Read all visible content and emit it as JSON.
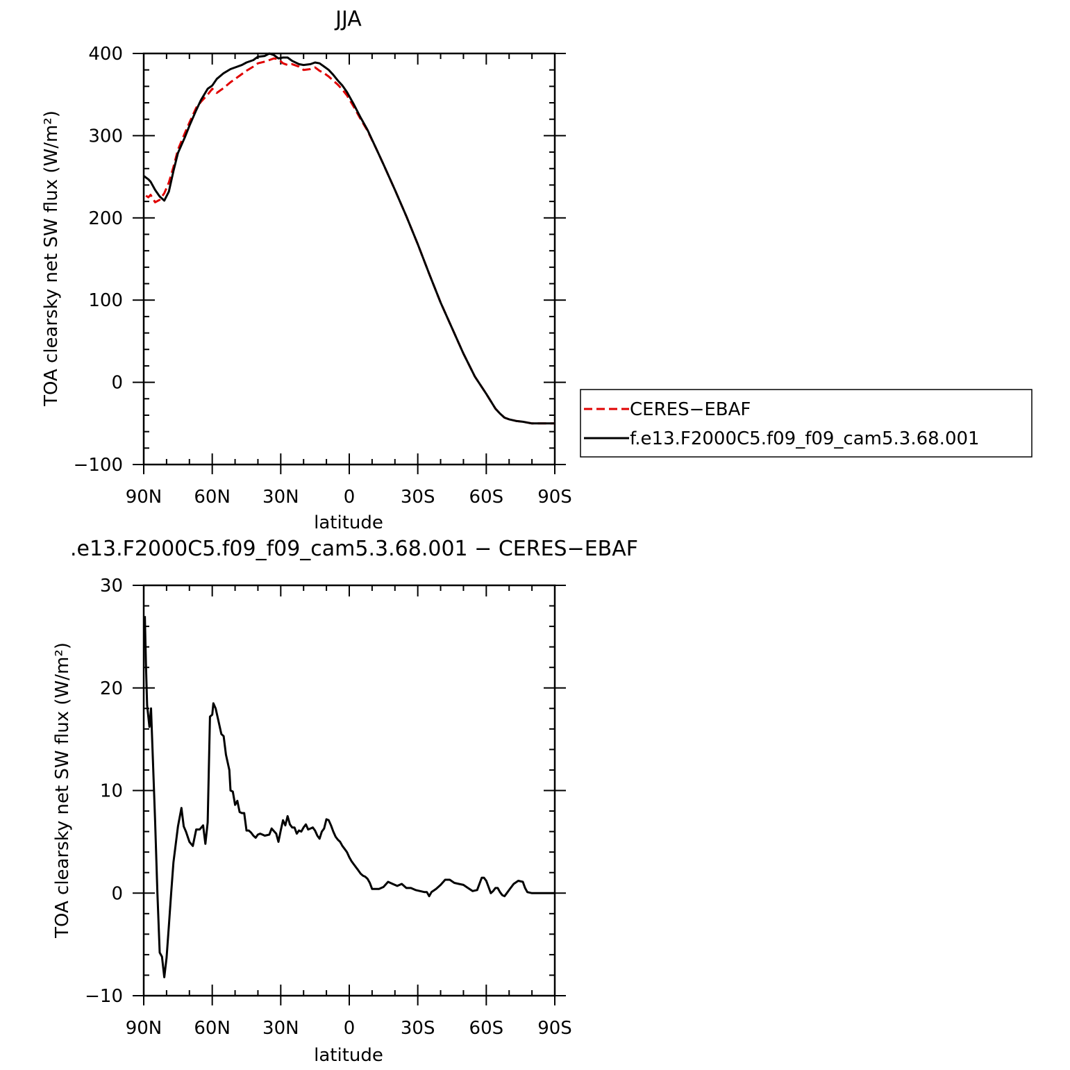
{
  "chart_data": [
    {
      "type": "line",
      "title": "JJA",
      "xlabel": "latitude",
      "ylabel": "TOA clearsky net SW flux (W/m²)",
      "xlim": [
        90,
        -90
      ],
      "ylim": [
        -100,
        400
      ],
      "xticks": [
        90,
        60,
        30,
        0,
        -30,
        -60,
        -90
      ],
      "xtick_labels": [
        "90N",
        "60N",
        "30N",
        "0",
        "30S",
        "60S",
        "90S"
      ],
      "yticks": [
        400,
        300,
        200,
        100,
        0,
        -100
      ],
      "ytick_labels": [
        "400",
        "300",
        "200",
        "100",
        "0",
        "−100"
      ],
      "legend": "right",
      "series": [
        {
          "name": "CERES−EBAF",
          "color": "#e00000",
          "style": "dashed",
          "x": [
            89,
            88,
            87,
            85,
            83,
            81,
            79,
            77,
            75,
            72,
            70,
            67,
            65,
            62,
            60,
            58,
            55,
            52,
            50,
            47,
            45,
            42,
            40,
            37,
            35,
            33,
            31,
            29,
            27,
            25,
            22,
            20,
            17,
            15,
            13,
            11,
            9,
            7,
            5,
            3,
            1,
            -2,
            -5,
            -8,
            -12,
            -15,
            -20,
            -25,
            -30,
            -35,
            -40,
            -45,
            -50,
            -55,
            -60,
            -62,
            -64,
            -66,
            -68,
            -70,
            -73,
            -76,
            -80,
            -84,
            -88,
            -90
          ],
          "y": [
            227,
            225,
            228,
            219,
            222,
            230,
            243,
            262,
            283,
            303,
            316,
            334,
            341,
            350,
            357,
            352,
            358,
            365,
            369,
            375,
            379,
            384,
            388,
            390,
            392,
            394,
            393,
            388,
            386,
            387,
            384,
            380,
            381,
            383,
            379,
            376,
            372,
            367,
            362,
            356,
            349,
            335,
            320,
            306,
            283,
            265,
            234,
            202,
            168,
            132,
            97,
            66,
            35,
            7,
            -14,
            -23,
            -32,
            -38,
            -43,
            -45,
            -47,
            -48,
            -50,
            -50,
            -50,
            -50
          ]
        },
        {
          "name": "f.e13.F2000C5.f09_f09_cam5.3.68.001",
          "color": "#000000",
          "style": "solid",
          "x": [
            90,
            88,
            87,
            85,
            83,
            81,
            79,
            77,
            75,
            72,
            70,
            67,
            65,
            62,
            60,
            58,
            55,
            52,
            50,
            47,
            45,
            42,
            40,
            37,
            35,
            33,
            31,
            29,
            27,
            25,
            22,
            20,
            17,
            15,
            13,
            11,
            9,
            7,
            5,
            3,
            1,
            -2,
            -5,
            -8,
            -12,
            -15,
            -20,
            -25,
            -30,
            -35,
            -40,
            -45,
            -50,
            -55,
            -60,
            -62,
            -64,
            -66,
            -68,
            -70,
            -73,
            -76,
            -80,
            -84,
            -88,
            -90
          ],
          "y": [
            251,
            247,
            244,
            234,
            226,
            221,
            232,
            257,
            279,
            298,
            312,
            331,
            343,
            357,
            361,
            369,
            376,
            381,
            383,
            386,
            389,
            392,
            396,
            397,
            400,
            398,
            394,
            395,
            395,
            391,
            387,
            386,
            387,
            389,
            388,
            384,
            380,
            374,
            367,
            361,
            353,
            338,
            322,
            307,
            283,
            265,
            234,
            202,
            168,
            132,
            97,
            66,
            35,
            7,
            -14,
            -23,
            -32,
            -38,
            -43,
            -45,
            -47,
            -48,
            -50,
            -50,
            -50,
            -50
          ]
        }
      ]
    },
    {
      "type": "line",
      "title": ".e13.F2000C5.f09_f09_cam5.3.68.001 − CERES−EBAF",
      "xlabel": "latitude",
      "ylabel": "TOA clearsky net SW flux (W/m²)",
      "xlim": [
        90,
        -90
      ],
      "ylim": [
        -10,
        30
      ],
      "xticks": [
        90,
        60,
        30,
        0,
        -30,
        -60,
        -90
      ],
      "xtick_labels": [
        "90N",
        "60N",
        "30N",
        "0",
        "30S",
        "60S",
        "90S"
      ],
      "yticks": [
        30,
        20,
        10,
        0,
        -10
      ],
      "ytick_labels": [
        "30",
        "20",
        "10",
        "0",
        "−10"
      ],
      "series": [
        {
          "name": "",
          "color": "#000000",
          "style": "solid",
          "x": [
            89.5,
            89,
            88.5,
            87.5,
            86.8,
            86,
            85,
            84,
            83,
            82,
            81,
            80,
            79,
            78,
            77,
            75,
            73.5,
            72.5,
            71.5,
            70,
            68.5,
            67,
            65.5,
            64,
            63,
            62,
            61,
            60,
            59.5,
            58.5,
            57.5,
            56,
            55,
            54,
            52.5,
            52,
            51,
            50,
            49,
            48,
            47,
            46,
            45,
            44,
            43,
            42,
            41,
            40,
            39,
            38,
            37,
            35,
            34,
            32,
            31,
            30,
            29,
            28,
            27,
            26,
            25,
            24,
            23,
            22,
            21,
            20,
            19,
            18,
            17,
            16,
            15,
            14,
            13,
            12,
            11,
            10,
            9,
            8,
            7,
            6,
            5,
            4,
            3,
            2,
            1,
            0,
            -1,
            -2,
            -3,
            -4,
            -5,
            -6,
            -7,
            -8,
            -9,
            -10,
            -11,
            -13,
            -15,
            -17,
            -19,
            -21,
            -23,
            -25,
            -27,
            -29,
            -31,
            -33,
            -34,
            -35,
            -36,
            -38,
            -40,
            -42,
            -44,
            -46,
            -48,
            -50,
            -52,
            -54,
            -56,
            -58,
            -59,
            -60,
            -61,
            -62,
            -63,
            -64,
            -65,
            -66,
            -67,
            -68,
            -69,
            -70,
            -71,
            -72,
            -74,
            -76,
            -77,
            -78,
            -80,
            -82,
            -84,
            -86,
            -88,
            -90
          ],
          "y": [
            27,
            22,
            18.3,
            16.2,
            18,
            13,
            7,
            0,
            -5.8,
            -6.2,
            -8.2,
            -6.3,
            -3.2,
            0,
            3,
            6.5,
            8.3,
            6.5,
            6,
            5,
            4.6,
            6.2,
            6.2,
            6.6,
            4.8,
            6.9,
            17.2,
            17.4,
            18.5,
            18,
            17,
            15.5,
            15.3,
            13.5,
            12,
            10,
            9.9,
            8.6,
            9,
            7.9,
            7.8,
            7.8,
            6.1,
            6.1,
            5.9,
            5.6,
            5.4,
            5.7,
            5.8,
            5.7,
            5.6,
            5.7,
            6.3,
            5.8,
            5.0,
            6.1,
            7.1,
            6.6,
            7.5,
            6.7,
            6.4,
            6.4,
            5.8,
            6.1,
            6.0,
            6.4,
            6.7,
            6.2,
            6.3,
            6.4,
            6.1,
            5.6,
            5.3,
            6.0,
            6.3,
            7.2,
            7.1,
            6.6,
            6.0,
            5.5,
            5.2,
            5.0,
            4.6,
            4.3,
            4.0,
            3.5,
            3.1,
            2.8,
            2.5,
            2.2,
            1.9,
            1.7,
            1.6,
            1.4,
            1.0,
            0.4,
            0.4,
            0.4,
            0.6,
            1.1,
            0.9,
            0.7,
            0.9,
            0.5,
            0.5,
            0.3,
            0.2,
            0.1,
            0.1,
            -0.3,
            0.1,
            0.4,
            0.8,
            1.3,
            1.3,
            1.0,
            0.9,
            0.8,
            0.5,
            0.2,
            0.3,
            1.5,
            1.5,
            1.2,
            0.6,
            0,
            0.2,
            0.5,
            0.5,
            0.1,
            -0.2,
            -0.3,
            0,
            0.3,
            0.6,
            0.9,
            1.2,
            1.1,
            0.5,
            0.1,
            0,
            0,
            0,
            0,
            0,
            0
          ]
        }
      ]
    }
  ]
}
